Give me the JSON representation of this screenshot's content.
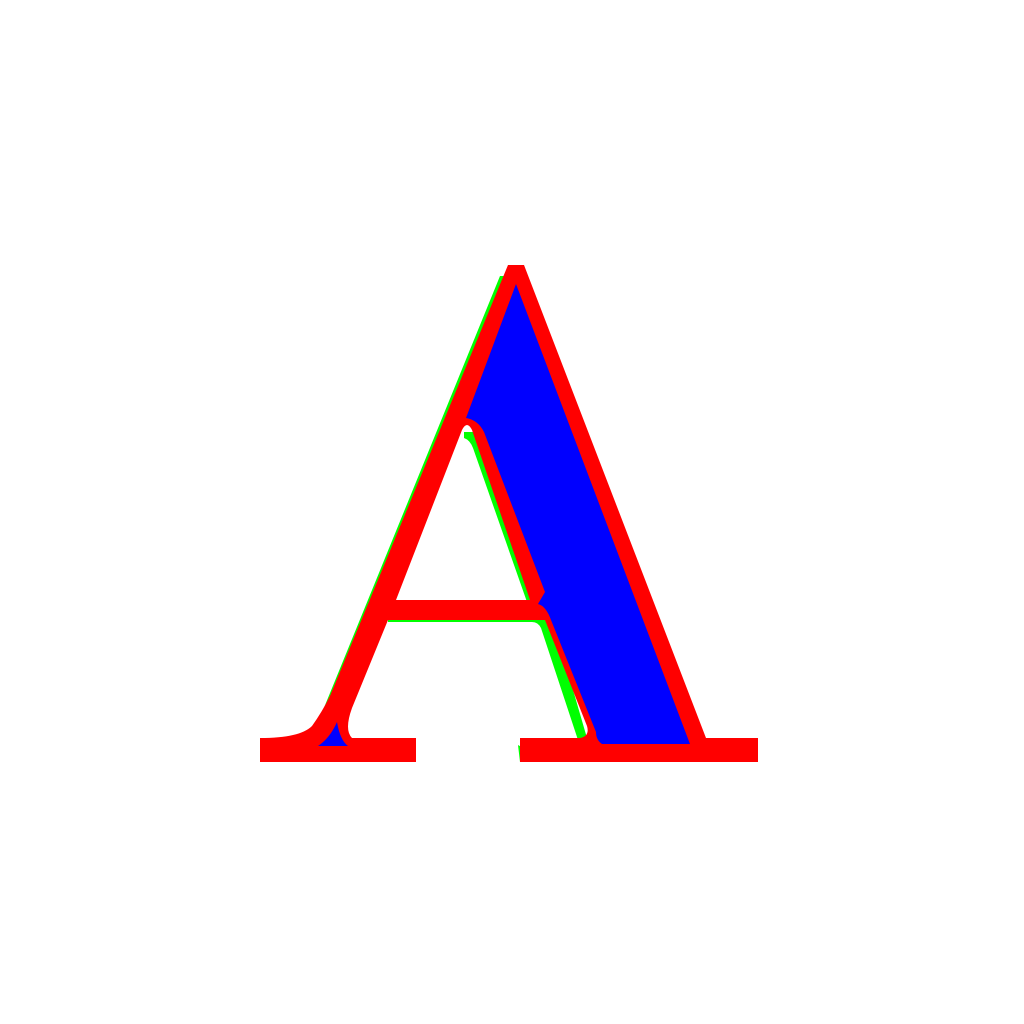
{
  "glyph": {
    "name": "serif capital A",
    "colors": {
      "background": "#ffffff",
      "outer_layer": "#00ff00",
      "middle_layer": "#ff0000",
      "inner_layer": "#0000ff"
    }
  }
}
